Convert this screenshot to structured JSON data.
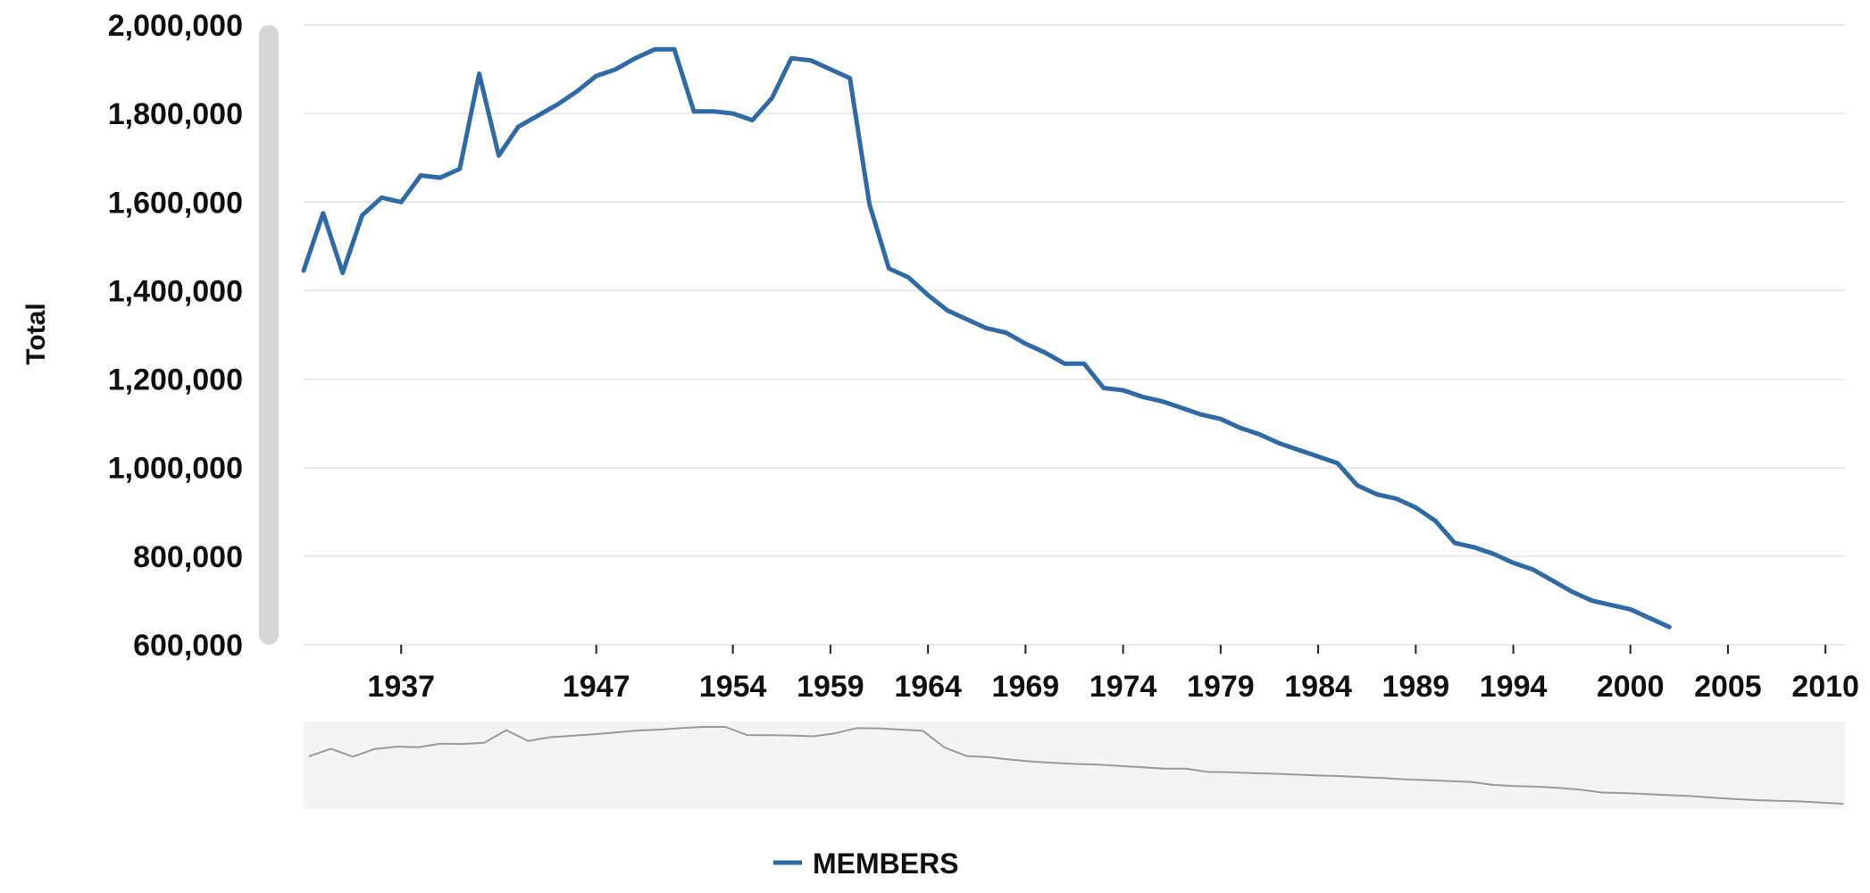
{
  "chart_data": {
    "type": "line",
    "ylabel": "Total",
    "xlabel": "",
    "ylim": [
      600000,
      2000000
    ],
    "xlim": [
      1932,
      2011
    ],
    "yticks": [
      600000,
      800000,
      1000000,
      1200000,
      1400000,
      1600000,
      1800000,
      2000000
    ],
    "ytick_labels": [
      "600,000",
      "800,000",
      "1,000,000",
      "1,200,000",
      "1,400,000",
      "1,600,000",
      "1,800,000",
      "2,000,000"
    ],
    "xticks": [
      1937,
      1947,
      1954,
      1959,
      1964,
      1969,
      1974,
      1979,
      1984,
      1989,
      1994,
      2000,
      2005,
      2010
    ],
    "xtick_labels": [
      "1937",
      "1947",
      "1954",
      "1959",
      "1964",
      "1969",
      "1974",
      "1979",
      "1984",
      "1989",
      "1994",
      "2000",
      "2005",
      "2010"
    ],
    "grid": true,
    "legend_position": "bottom",
    "navigator": true,
    "series": [
      {
        "name": "MEMBERS",
        "color": "#2e6aa8",
        "points": [
          [
            1932,
            1445000
          ],
          [
            1933,
            1575000
          ],
          [
            1934,
            1440000
          ],
          [
            1935,
            1570000
          ],
          [
            1936,
            1610000
          ],
          [
            1937,
            1600000
          ],
          [
            1938,
            1660000
          ],
          [
            1939,
            1655000
          ],
          [
            1940,
            1675000
          ],
          [
            1941,
            1890000
          ],
          [
            1942,
            1705000
          ],
          [
            1943,
            1770000
          ],
          [
            1944,
            1795000
          ],
          [
            1945,
            1820000
          ],
          [
            1946,
            1850000
          ],
          [
            1947,
            1885000
          ],
          [
            1948,
            1900000
          ],
          [
            1949,
            1925000
          ],
          [
            1950,
            1945000
          ],
          [
            1951,
            1945000
          ],
          [
            1952,
            1805000
          ],
          [
            1953,
            1805000
          ],
          [
            1954,
            1800000
          ],
          [
            1955,
            1785000
          ],
          [
            1956,
            1835000
          ],
          [
            1957,
            1925000
          ],
          [
            1958,
            1920000
          ],
          [
            1959,
            1900000
          ],
          [
            1960,
            1880000
          ],
          [
            1961,
            1595000
          ],
          [
            1962,
            1450000
          ],
          [
            1963,
            1430000
          ],
          [
            1964,
            1390000
          ],
          [
            1965,
            1355000
          ],
          [
            1966,
            1335000
          ],
          [
            1967,
            1315000
          ],
          [
            1968,
            1305000
          ],
          [
            1969,
            1280000
          ],
          [
            1970,
            1260000
          ],
          [
            1971,
            1235000
          ],
          [
            1972,
            1235000
          ],
          [
            1973,
            1180000
          ],
          [
            1974,
            1175000
          ],
          [
            1975,
            1160000
          ],
          [
            1976,
            1150000
          ],
          [
            1977,
            1135000
          ],
          [
            1978,
            1120000
          ],
          [
            1979,
            1110000
          ],
          [
            1980,
            1090000
          ],
          [
            1981,
            1075000
          ],
          [
            1982,
            1055000
          ],
          [
            1983,
            1040000
          ],
          [
            1984,
            1025000
          ],
          [
            1985,
            1010000
          ],
          [
            1986,
            960000
          ],
          [
            1987,
            940000
          ],
          [
            1988,
            930000
          ],
          [
            1989,
            910000
          ],
          [
            1990,
            880000
          ],
          [
            1991,
            830000
          ],
          [
            1992,
            820000
          ],
          [
            1993,
            805000
          ],
          [
            1994,
            785000
          ],
          [
            1995,
            770000
          ],
          [
            1996,
            745000
          ],
          [
            1997,
            720000
          ],
          [
            1998,
            700000
          ],
          [
            1999,
            690000
          ],
          [
            2000,
            680000
          ],
          [
            2001,
            660000
          ],
          [
            2002,
            640000
          ]
        ]
      }
    ]
  }
}
